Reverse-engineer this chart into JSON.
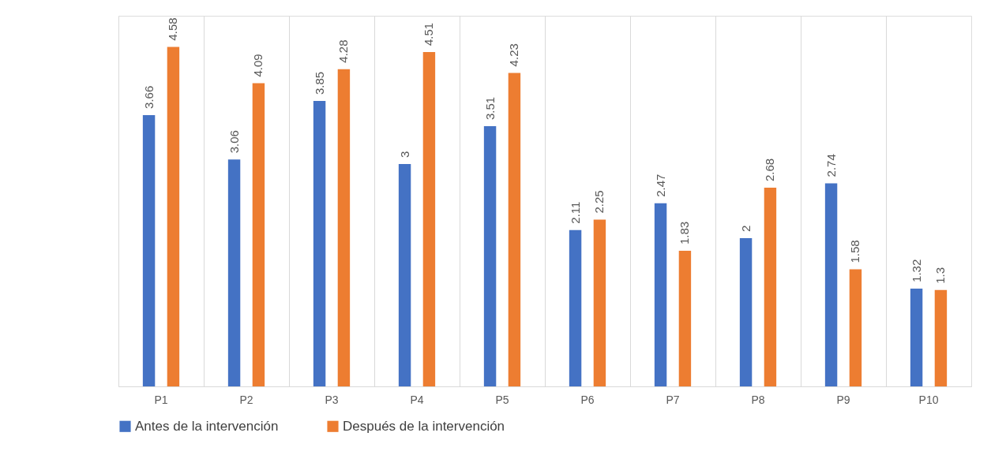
{
  "chart_data": {
    "type": "bar",
    "categories": [
      "P1",
      "P2",
      "P3",
      "P4",
      "P5",
      "P6",
      "P7",
      "P8",
      "P9",
      "P10"
    ],
    "series": [
      {
        "name": "Antes de la intervención",
        "color": "#4472c4",
        "values": [
          3.66,
          3.06,
          3.85,
          3,
          3.51,
          2.11,
          2.47,
          2,
          2.74,
          1.32
        ]
      },
      {
        "name": "Después de la intervención",
        "color": "#ed7d31",
        "values": [
          4.58,
          4.09,
          4.28,
          4.51,
          4.23,
          2.25,
          1.83,
          2.68,
          1.58,
          1.3
        ]
      }
    ],
    "data_labels": true,
    "grid": "x",
    "legend": "bottom",
    "tick_labels": "x"
  }
}
